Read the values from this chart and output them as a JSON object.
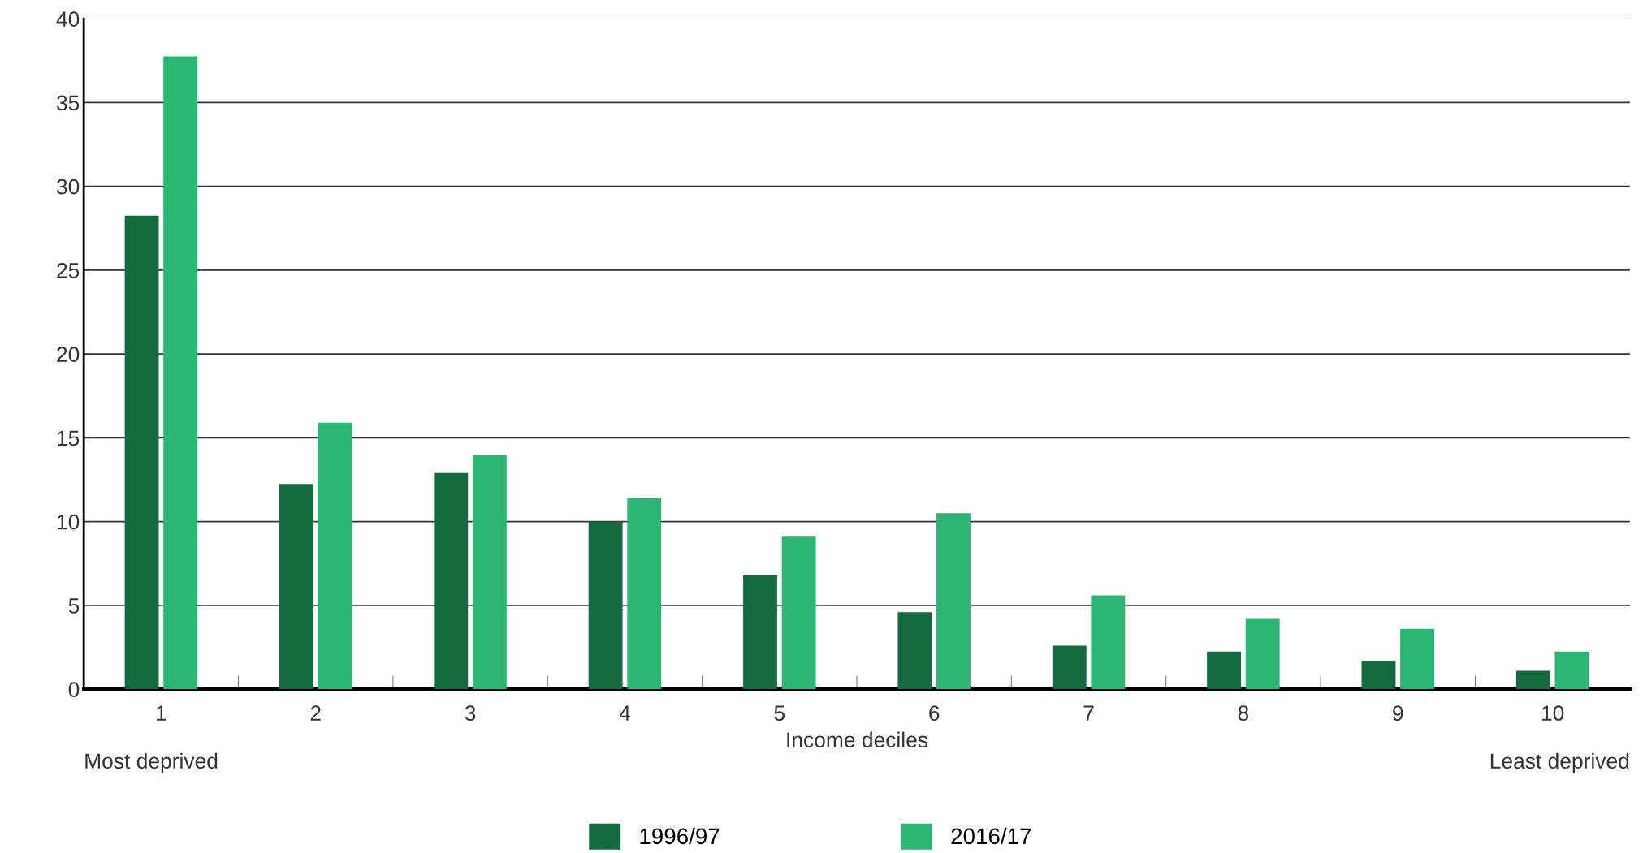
{
  "chart_data": {
    "type": "bar",
    "xlabel": "Income deciles",
    "categories": [
      "1",
      "2",
      "3",
      "4",
      "5",
      "6",
      "7",
      "8",
      "9",
      "10"
    ],
    "series": [
      {
        "name": "1996/97",
        "color": "#136b3f",
        "values": [
          28.25,
          12.25,
          12.9,
          10.0,
          6.8,
          4.6,
          2.6,
          2.25,
          1.7,
          1.1
        ]
      },
      {
        "name": "2016/17",
        "color": "#2bb673",
        "values": [
          37.75,
          15.9,
          14.0,
          11.4,
          9.1,
          10.5,
          5.6,
          4.2,
          3.6,
          2.25
        ]
      }
    ],
    "ylim": [
      0,
      40
    ],
    "yticks": [
      0,
      5,
      10,
      15,
      20,
      25,
      30,
      35,
      40
    ],
    "grid": "y",
    "legend": "bottom",
    "annotations": [
      "Most deprived",
      "Least deprived"
    ]
  }
}
